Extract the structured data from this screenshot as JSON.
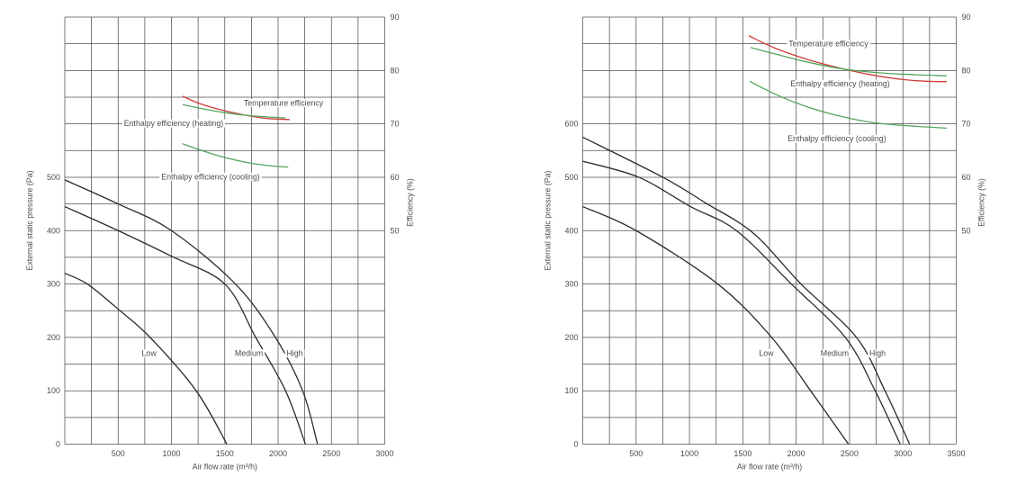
{
  "page": {
    "background": "#ffffff"
  },
  "colors": {
    "grid": "#4f4f4f",
    "fan_curve": "#2b2b2b",
    "temperature": "#cf3c3c",
    "enthalpy": "#53a55b",
    "text": "#4d4d4d"
  },
  "chart_data": [
    {
      "type": "line",
      "name": "left-chart",
      "xlabel": "Air flow rate (m³/h)",
      "x_range": [
        0,
        3000
      ],
      "x_grid_step": 250,
      "x_tick_labels": [
        500,
        1000,
        1500,
        2000,
        2500,
        3000
      ],
      "pressure_axis": {
        "label": "External static pressure (Pa)",
        "tick_labels": [
          0,
          100,
          200,
          300,
          400,
          500
        ],
        "grid_step_pa": 50,
        "range_pa": [
          0,
          800
        ]
      },
      "efficiency_axis": {
        "label": "Efficiency (%)",
        "tick_labels": [
          50,
          60,
          70,
          80,
          90
        ],
        "range_pct": [
          10,
          90
        ]
      },
      "fan_curves": [
        {
          "name": "low",
          "label": "Low",
          "label_at": {
            "flow": 790,
            "pa": 170
          },
          "points_flow_pa": [
            [
              0,
              320
            ],
            [
              211,
              300
            ],
            [
              500,
              253
            ],
            [
              800,
              200
            ],
            [
              1232,
              100
            ],
            [
              1520,
              0
            ]
          ]
        },
        {
          "name": "medium",
          "label": "Medium",
          "label_at": {
            "flow": 1726,
            "pa": 170
          },
          "points_flow_pa": [
            [
              0,
              445
            ],
            [
              500,
              400
            ],
            [
              1000,
              352
            ],
            [
              1500,
              300
            ],
            [
              1790,
              200
            ],
            [
              2070,
              100
            ],
            [
              2256,
              0
            ]
          ]
        },
        {
          "name": "high",
          "label": "High",
          "label_at": {
            "flow": 2156,
            "pa": 170
          },
          "points_flow_pa": [
            [
              0,
              495
            ],
            [
              500,
              450
            ],
            [
              1000,
              400
            ],
            [
              1600,
              300
            ],
            [
              1975,
              200
            ],
            [
              2230,
              100
            ],
            [
              2370,
              0
            ]
          ]
        }
      ],
      "efficiency_curves": [
        {
          "name": "temperature",
          "label": "Temperature efficiency",
          "color_key": "temperature",
          "label_at": {
            "flow": 2051,
            "eff": 73.9
          },
          "points_flow_eff": [
            [
              1105,
              75.2
            ],
            [
              1250,
              73.9
            ],
            [
              1450,
              72.7
            ],
            [
              1700,
              71.6
            ],
            [
              1900,
              71.0
            ],
            [
              2110,
              70.8
            ]
          ]
        },
        {
          "name": "enthalpy-heating",
          "label": "Enthalpy efficiency (heating)",
          "color_key": "enthalpy",
          "label_at": {
            "flow": 1021,
            "eff": 70.1
          },
          "points_flow_eff": [
            [
              1105,
              73.6
            ],
            [
              1300,
              72.8
            ],
            [
              1500,
              72.1
            ],
            [
              1700,
              71.6
            ],
            [
              1900,
              71.3
            ],
            [
              2070,
              71.1
            ]
          ]
        },
        {
          "name": "enthalpy-cooling",
          "label": "Enthalpy efficiency (cooling)",
          "color_key": "enthalpy",
          "label_at": {
            "flow": 1367,
            "eff": 60.1
          },
          "points_flow_eff": [
            [
              1100,
              66.3
            ],
            [
              1300,
              64.9
            ],
            [
              1500,
              63.7
            ],
            [
              1700,
              62.8
            ],
            [
              1900,
              62.2
            ],
            [
              2095,
              61.9
            ]
          ]
        }
      ]
    },
    {
      "type": "line",
      "name": "right-chart",
      "xlabel": "Air flow rate (m³/h)",
      "x_range": [
        0,
        3500
      ],
      "x_grid_step": 250,
      "x_tick_labels": [
        500,
        1000,
        1500,
        2000,
        2500,
        3000,
        3500
      ],
      "pressure_axis": {
        "label": "External static pressure (Pa)",
        "tick_labels": [
          0,
          100,
          200,
          300,
          400,
          500,
          600
        ],
        "grid_step_pa": 50,
        "range_pa": [
          0,
          800
        ]
      },
      "efficiency_axis": {
        "label": "Efficiency (%)",
        "tick_labels": [
          50,
          60,
          70,
          80,
          90
        ],
        "range_pct": [
          10,
          90
        ]
      },
      "fan_curves": [
        {
          "name": "low",
          "label": "Low",
          "label_at": {
            "flow": 1720,
            "pa": 170
          },
          "points_flow_pa": [
            [
              0,
              445
            ],
            [
              500,
              400
            ],
            [
              1265,
              300
            ],
            [
              1770,
              200
            ],
            [
              2135,
              100
            ],
            [
              2490,
              0
            ]
          ]
        },
        {
          "name": "medium",
          "label": "Medium",
          "label_at": {
            "flow": 2361,
            "pa": 170
          },
          "points_flow_pa": [
            [
              0,
              530
            ],
            [
              525,
              500
            ],
            [
              1010,
              445
            ],
            [
              1440,
              400
            ],
            [
              1955,
              300
            ],
            [
              2460,
              200
            ],
            [
              2740,
              100
            ],
            [
              2975,
              0
            ]
          ]
        },
        {
          "name": "high",
          "label": "High",
          "label_at": {
            "flow": 2762,
            "pa": 170
          },
          "points_flow_pa": [
            [
              0,
              575
            ],
            [
              750,
              500
            ],
            [
              1150,
              452
            ],
            [
              1600,
              395
            ],
            [
              2045,
              300
            ],
            [
              2565,
              200
            ],
            [
              2832,
              100
            ],
            [
              3063,
              0
            ]
          ]
        }
      ],
      "efficiency_curves": [
        {
          "name": "temperature",
          "label": "Temperature efficiency",
          "color_key": "temperature",
          "label_at": {
            "flow": 2302,
            "eff": 85.0
          },
          "points_flow_eff": [
            [
              1556,
              86.5
            ],
            [
              1800,
              84.2
            ],
            [
              2100,
              82.1
            ],
            [
              2400,
              80.5
            ],
            [
              2700,
              79.2
            ],
            [
              3000,
              78.3
            ],
            [
              3200,
              78.0
            ],
            [
              3411,
              77.9
            ]
          ]
        },
        {
          "name": "enthalpy-heating",
          "label": "Enthalpy efficiency (heating)",
          "color_key": "enthalpy",
          "label_at": {
            "flow": 2412,
            "eff": 77.5
          },
          "points_flow_eff": [
            [
              1573,
              84.3
            ],
            [
              1800,
              83.1
            ],
            [
              2100,
              81.6
            ],
            [
              2400,
              80.4
            ],
            [
              2700,
              79.7
            ],
            [
              3000,
              79.3
            ],
            [
              3411,
              79.0
            ]
          ]
        },
        {
          "name": "enthalpy-cooling",
          "label": "Enthalpy efficiency (cooling)",
          "color_key": "enthalpy",
          "label_at": {
            "flow": 2382,
            "eff": 67.2
          },
          "points_flow_eff": [
            [
              1564,
              78.0
            ],
            [
              1800,
              75.6
            ],
            [
              2100,
              73.2
            ],
            [
              2400,
              71.5
            ],
            [
              2700,
              70.3
            ],
            [
              3000,
              69.7
            ],
            [
              3411,
              69.2
            ]
          ]
        }
      ]
    }
  ]
}
